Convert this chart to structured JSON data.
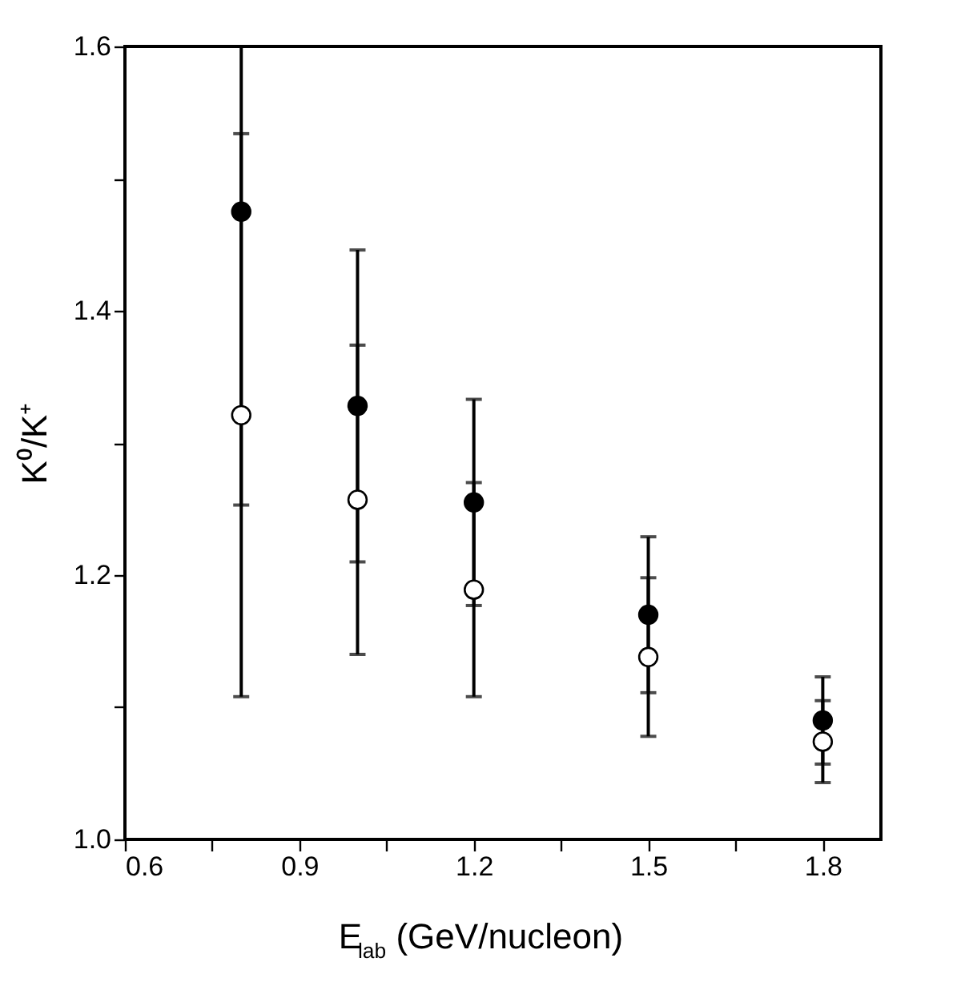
{
  "chart_data": {
    "type": "scatter",
    "xlabel": "E$_{lab}$ (GeV/nucleon)",
    "ylabel": "K⁰/K⁺",
    "x": [
      0.8,
      1.0,
      1.2,
      1.5,
      1.8
    ],
    "series": [
      {
        "color": "#000000",
        "values": [
          1.475,
          1.328,
          1.255,
          1.17,
          1.09
        ],
        "errors": [
          [
            1.253,
            1.6
          ],
          0.118,
          0.078,
          0.059,
          0.033
        ]
      },
      {
        "color": "#000000",
        "values": [
          1.321,
          1.257,
          1.189,
          1.138,
          1.074
        ],
        "errors": [
          0.213,
          0.117,
          0.081,
          0.06,
          0.031
        ]
      }
    ],
    "xlim": [
      0.6,
      1.9
    ],
    "ylim": [
      1.0,
      1.6
    ],
    "xticks": [
      0.6,
      {
        "value": 0.75,
        "label": null
      },
      0.9,
      {
        "value": 1.05,
        "label": null
      },
      1.2,
      {
        "value": 1.35,
        "label": null
      },
      1.5,
      {
        "value": 1.65,
        "label": null
      },
      1.8
    ],
    "yticks": [
      {
        "value": 1.0,
        "label": "1.0"
      },
      {
        "value": 1.1,
        "label": null
      },
      1.2,
      {
        "value": 1.3,
        "label": null
      },
      1.4,
      {
        "value": 1.5,
        "label": null
      },
      1.6
    ],
    "marker": "circle",
    "grid": false,
    "legend": false
  }
}
